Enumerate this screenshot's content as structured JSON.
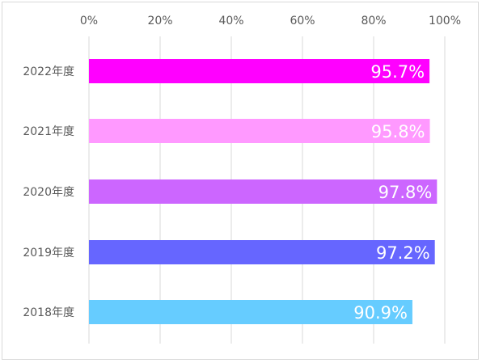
{
  "chart_data": {
    "type": "bar",
    "orientation": "horizontal",
    "title": "",
    "xlabel": "",
    "ylabel": "",
    "xlim": [
      0,
      100
    ],
    "x_ticks": [
      "0%",
      "20%",
      "40%",
      "60%",
      "80%",
      "100%"
    ],
    "grid": "vertical",
    "categories": [
      "2022年度",
      "2021年度",
      "2020年度",
      "2019年度",
      "2018年度"
    ],
    "values": [
      95.7,
      95.8,
      97.8,
      97.2,
      90.9
    ],
    "value_labels": [
      "95.7%",
      "95.8%",
      "97.8%",
      "97.2%",
      "90.9%"
    ],
    "colors": [
      "#ff00ff",
      "#ff99ff",
      "#cc66ff",
      "#6666ff",
      "#66ccff"
    ]
  }
}
